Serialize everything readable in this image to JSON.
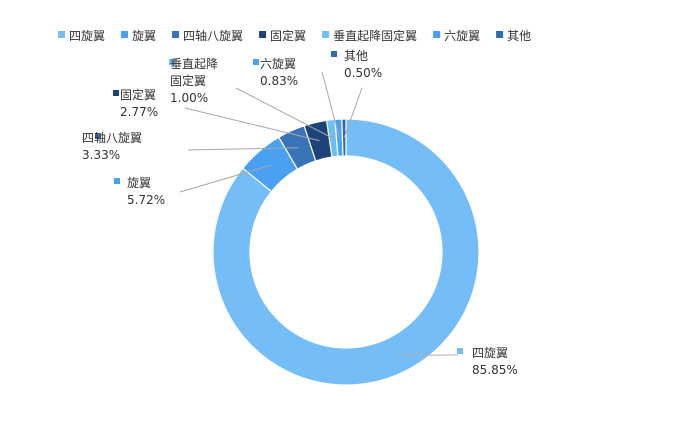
{
  "chart_data": {
    "type": "pie",
    "donut": true,
    "title": "",
    "legend_position": "top",
    "categories": [
      "四旋翼",
      "旋翼",
      "四轴八旋翼",
      "固定翼",
      "垂直起降固定翼",
      "六旋翼",
      "其他"
    ],
    "values": [
      85.85,
      5.72,
      3.33,
      2.77,
      1.0,
      0.83,
      0.5
    ],
    "value_labels": [
      "85.85%",
      "5.72%",
      "3.33%",
      "2.77%",
      "1.00%",
      "0.83%",
      "0.50%"
    ],
    "callout_name_lines": [
      [
        "四旋翼"
      ],
      [
        "旋翼"
      ],
      [
        "四轴八旋翼"
      ],
      [
        "固定翼"
      ],
      [
        "垂直起降",
        "固定翼"
      ],
      [
        "六旋翼"
      ],
      [
        "其他"
      ]
    ],
    "colors": [
      "#74bdf7",
      "#4aa0f2",
      "#3a74b8",
      "#1d4478",
      "#6cc0f5",
      "#4aa0f2",
      "#2f6bb0"
    ],
    "unit": "%"
  }
}
